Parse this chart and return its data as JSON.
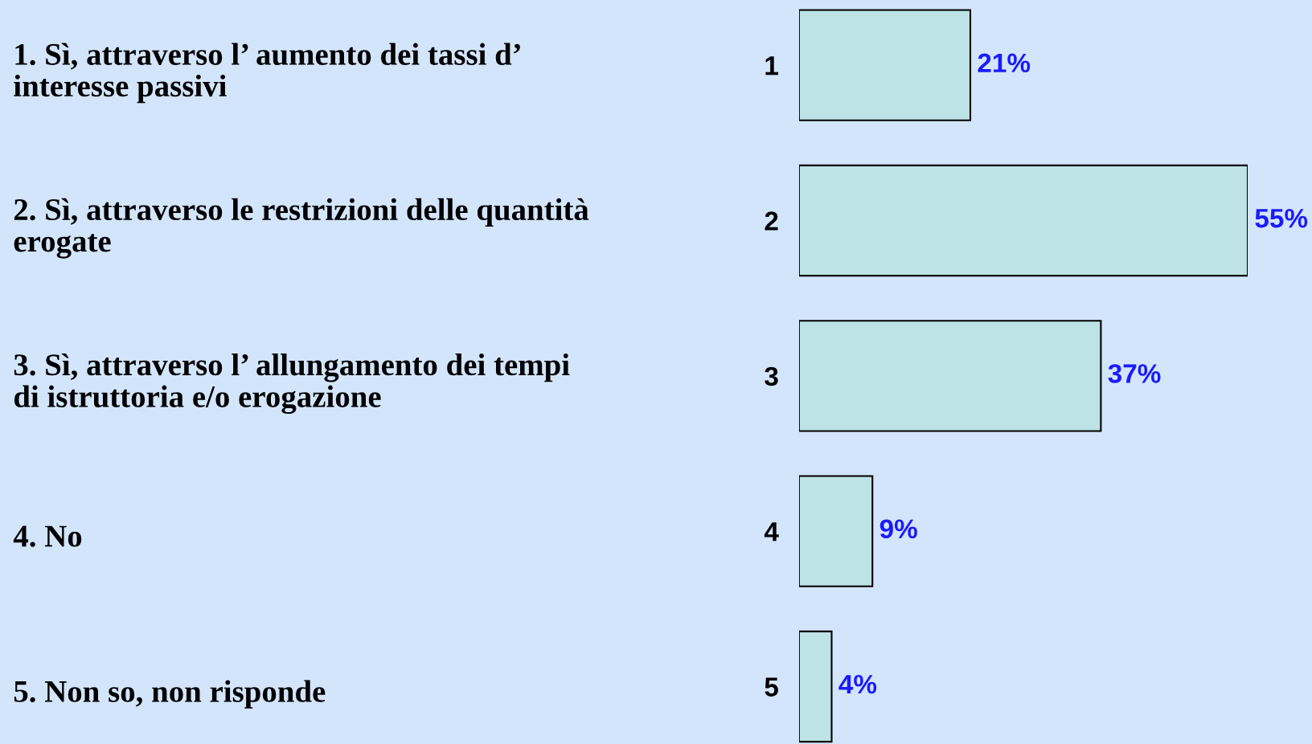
{
  "chart_data": {
    "type": "bar",
    "orientation": "horizontal",
    "categories": [
      "1",
      "2",
      "3",
      "4",
      "5"
    ],
    "values": [
      21,
      55,
      37,
      9,
      4
    ],
    "value_labels": [
      "21%",
      "55%",
      "37%",
      "9%",
      "4%"
    ],
    "color": "#bde3e6",
    "tick_labels": "y",
    "grid": false,
    "annotations": [
      "1. Sì, attraverso l’ aumento dei tassi d’\ninteresse passivi",
      "2. Sì, attraverso le restrizioni delle quantità\nerogate",
      "3. Sì, attraverso l’ allungamento dei tempi\ndi istruttoria e/o erogazione",
      "4. No",
      "5. Non so, non risponde"
    ]
  }
}
